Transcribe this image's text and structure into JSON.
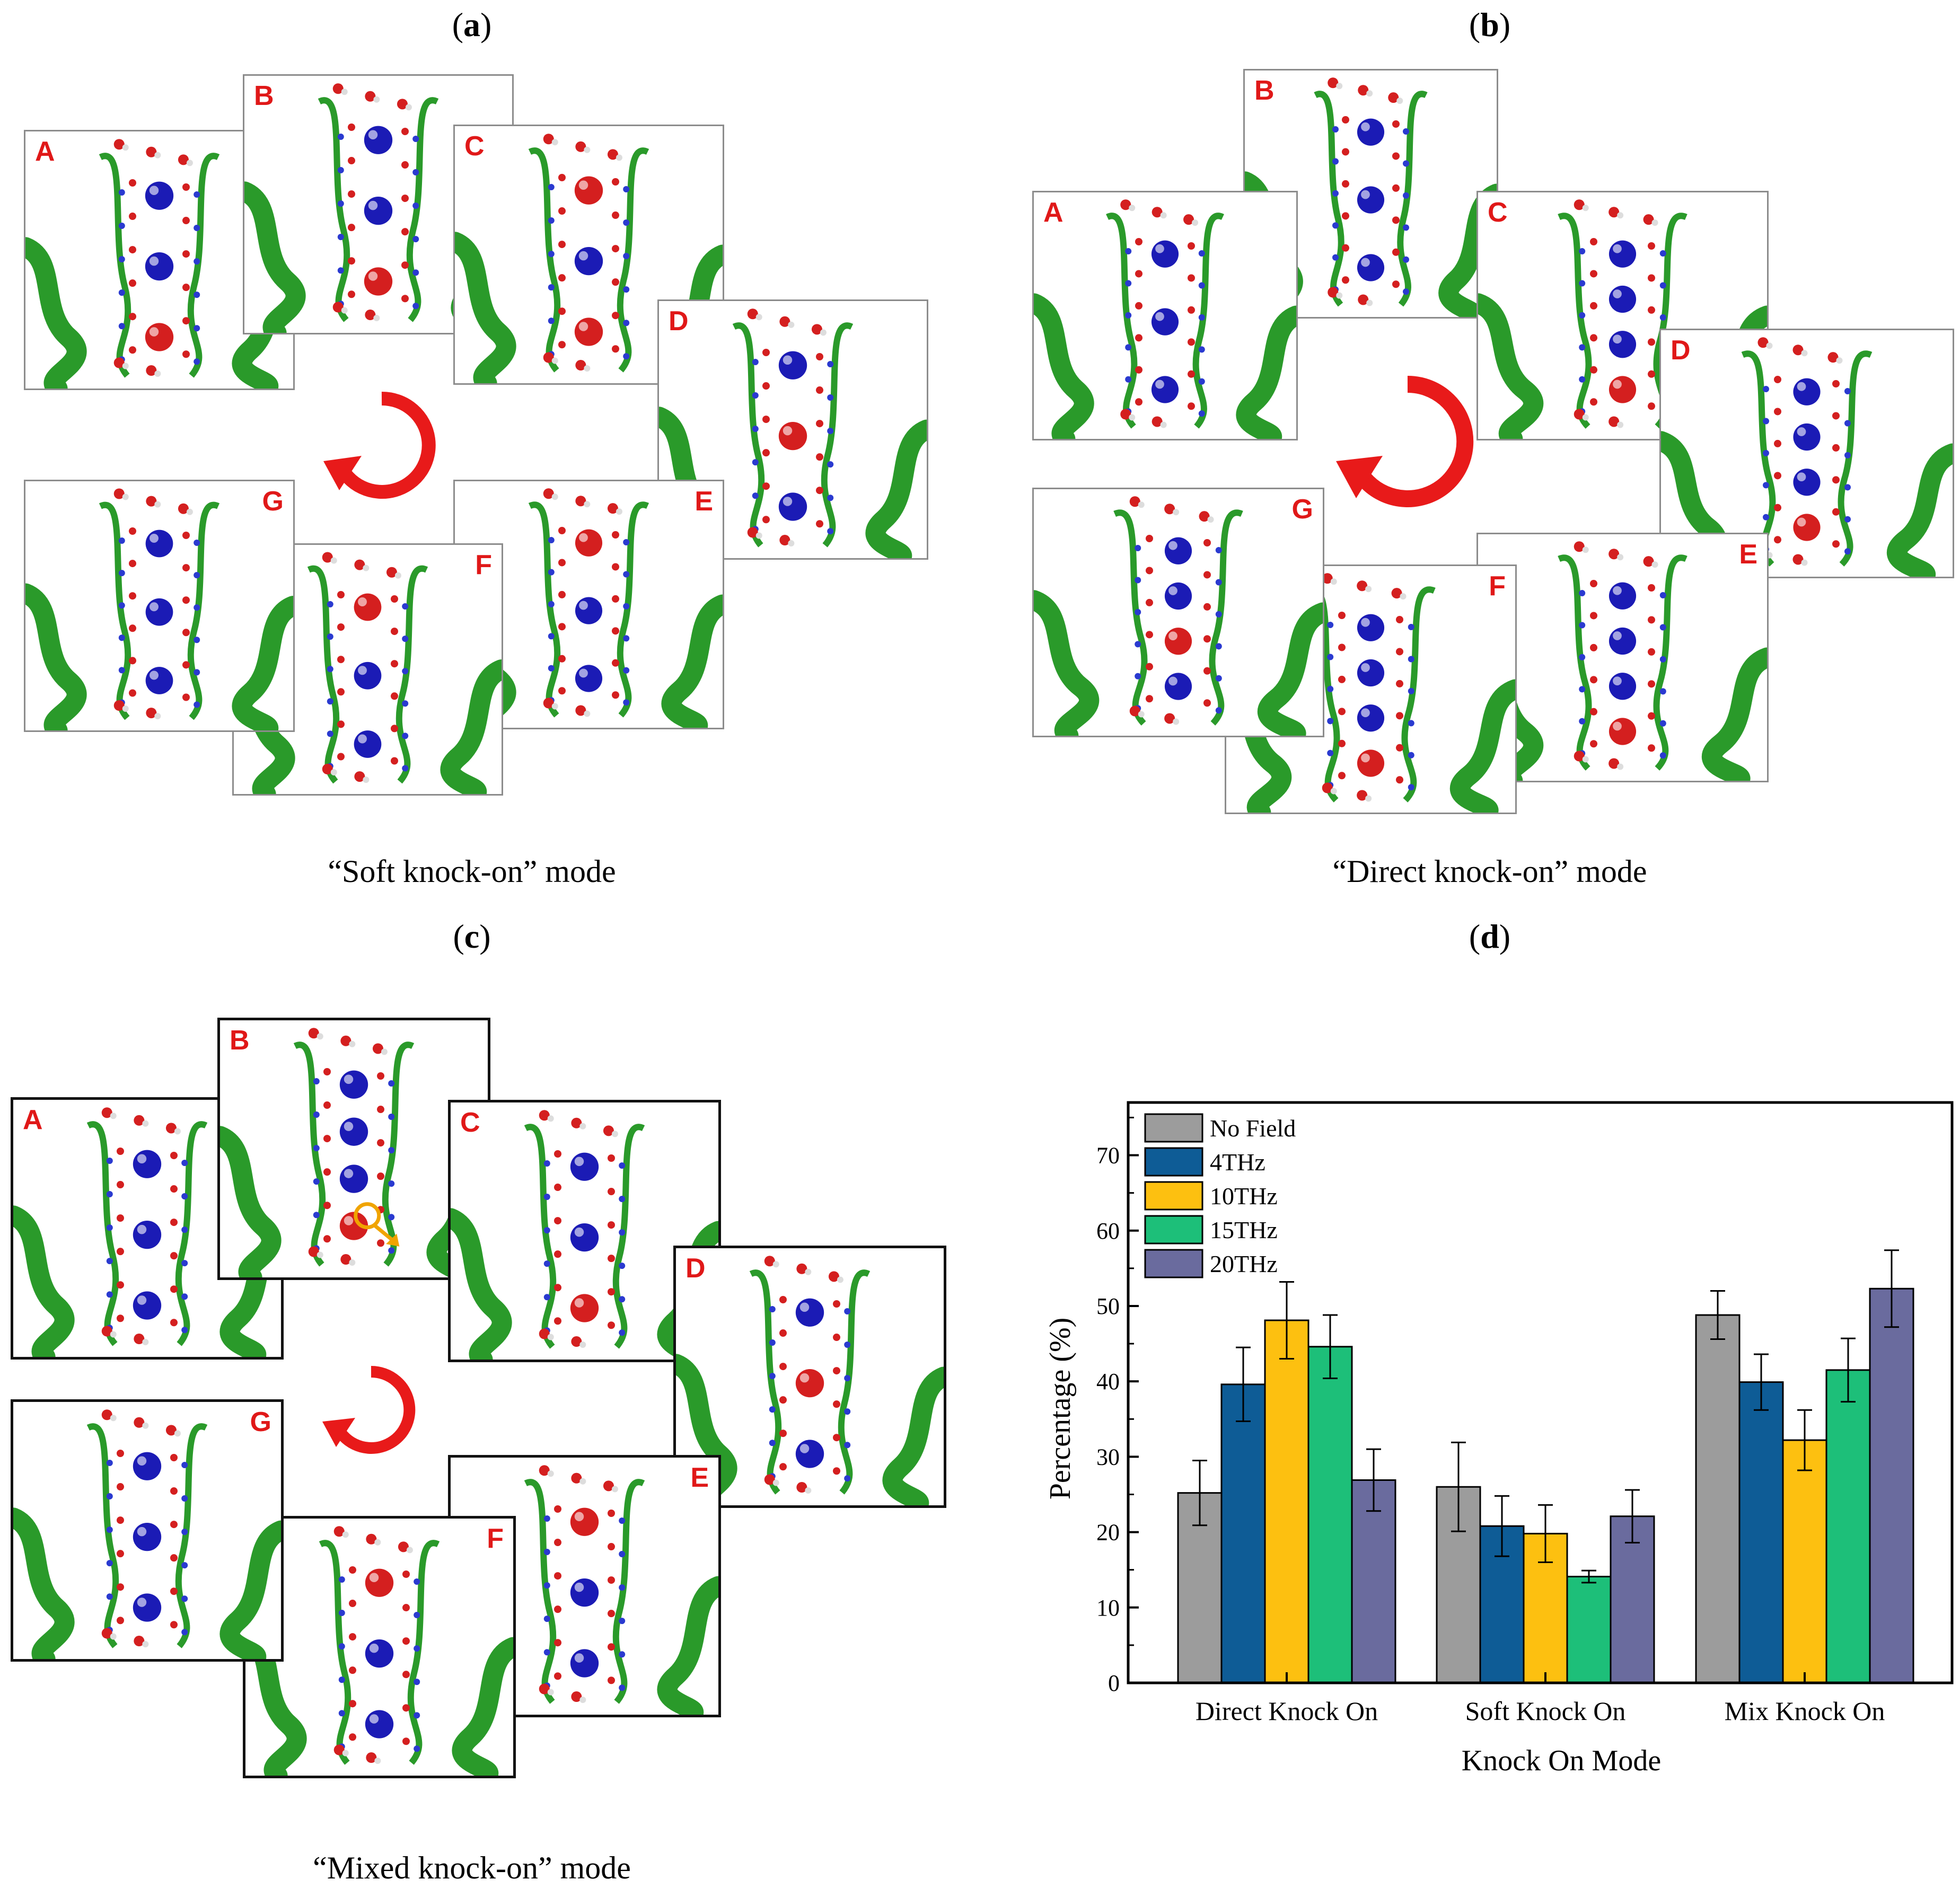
{
  "panels": [
    {
      "id": "a",
      "label_open": "(",
      "label_letter": "a",
      "label_close": ")",
      "caption": "“Soft knock-on” mode"
    },
    {
      "id": "b",
      "label_open": "(",
      "label_letter": "b",
      "label_close": ")",
      "caption": "“Direct knock-on” mode"
    },
    {
      "id": "c",
      "label_open": "(",
      "label_letter": "c",
      "label_close": ")",
      "caption": "“Mixed knock-on” mode"
    },
    {
      "id": "d",
      "label_open": "(",
      "label_letter": "d",
      "label_close": ")",
      "caption": ""
    }
  ],
  "frame_letters": [
    "A",
    "B",
    "C",
    "D",
    "E",
    "F",
    "G"
  ],
  "colors": {
    "helix": "#2a9a2a",
    "ion_blue": "#1b1bb5",
    "ion_red": "#d41f1f",
    "frame_letter": "#e01818",
    "cycle_arrow": "#e81a1a",
    "marker": "#f0a400"
  },
  "chart_data": {
    "type": "bar",
    "xlabel": "Knock On Mode",
    "ylabel": "Percentage (%)",
    "ylim": [
      0,
      77
    ],
    "yticks": [
      0,
      10,
      20,
      30,
      40,
      50,
      60,
      70
    ],
    "categories": [
      "Direct Knock On",
      "Soft Knock On",
      "Mix Knock On"
    ],
    "legend_position": "top-left",
    "grid": false,
    "series": [
      {
        "name": "No Field",
        "color": "#9c9c9c",
        "values": [
          25.2,
          26.0,
          48.8
        ],
        "errors": [
          4.3,
          5.9,
          3.2
        ]
      },
      {
        "name": "4THz",
        "color": "#0e5c96",
        "values": [
          39.6,
          20.8,
          39.9
        ],
        "errors": [
          4.9,
          4.0,
          3.7
        ]
      },
      {
        "name": "10THz",
        "color": "#fdc010",
        "values": [
          48.1,
          19.8,
          32.2
        ],
        "errors": [
          5.1,
          3.8,
          4.0
        ]
      },
      {
        "name": "15THz",
        "color": "#1dbf79",
        "values": [
          44.6,
          14.1,
          41.5
        ],
        "errors": [
          4.2,
          0.8,
          4.2
        ]
      },
      {
        "name": "20THz",
        "color": "#6a6b9e",
        "values": [
          26.9,
          22.1,
          52.3
        ],
        "errors": [
          4.1,
          3.5,
          5.1
        ]
      }
    ]
  }
}
